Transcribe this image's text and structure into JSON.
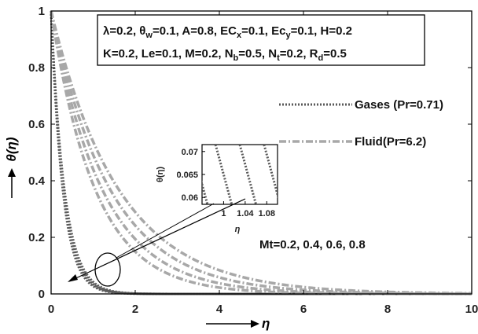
{
  "chart_data": {
    "type": "line",
    "xlabel": "η",
    "ylabel": "θ(η)",
    "xlim": [
      0,
      10
    ],
    "ylim": [
      0,
      1
    ],
    "xticks": [
      0,
      2,
      4,
      6,
      8,
      10
    ],
    "yticks": [
      0,
      0.2,
      0.4,
      0.6,
      0.8,
      1
    ],
    "grid": false,
    "params_line1": [
      "λ=0.2",
      "θw=0.1",
      "A=0.8",
      "ECx=0.1",
      "Ecy=0.1",
      "H=0.2"
    ],
    "params_line2": [
      "K=0.2",
      "Le=0.1",
      "M=0.2",
      "Nb=0.5",
      "Nt=0.2",
      "Rd=0.5"
    ],
    "annotation": "Mt=0.2, 0.4, 0.6, 0.8",
    "legend_position": "right",
    "series_groups": [
      {
        "name": "Gases (Pr=0.71)",
        "style": "dotted",
        "color": "#5a5a5a",
        "decay_rates": [
          3.6,
          3.45,
          3.3,
          3.15
        ]
      },
      {
        "name": "Fluid(Pr=6.2)",
        "style": "dash-dot",
        "color": "#a8a8a8",
        "decay_rates": [
          0.95,
          0.82,
          0.71,
          0.62
        ]
      }
    ],
    "inset": {
      "xlabel": "η",
      "ylabel": "θ(η)",
      "xlim": [
        0.96,
        1.1
      ],
      "ylim": [
        0.0585,
        0.0715
      ],
      "xticks": [
        "1",
        "1.04",
        "1.08"
      ],
      "yticks": [
        "0.06",
        "0.065",
        "0.07"
      ]
    }
  }
}
